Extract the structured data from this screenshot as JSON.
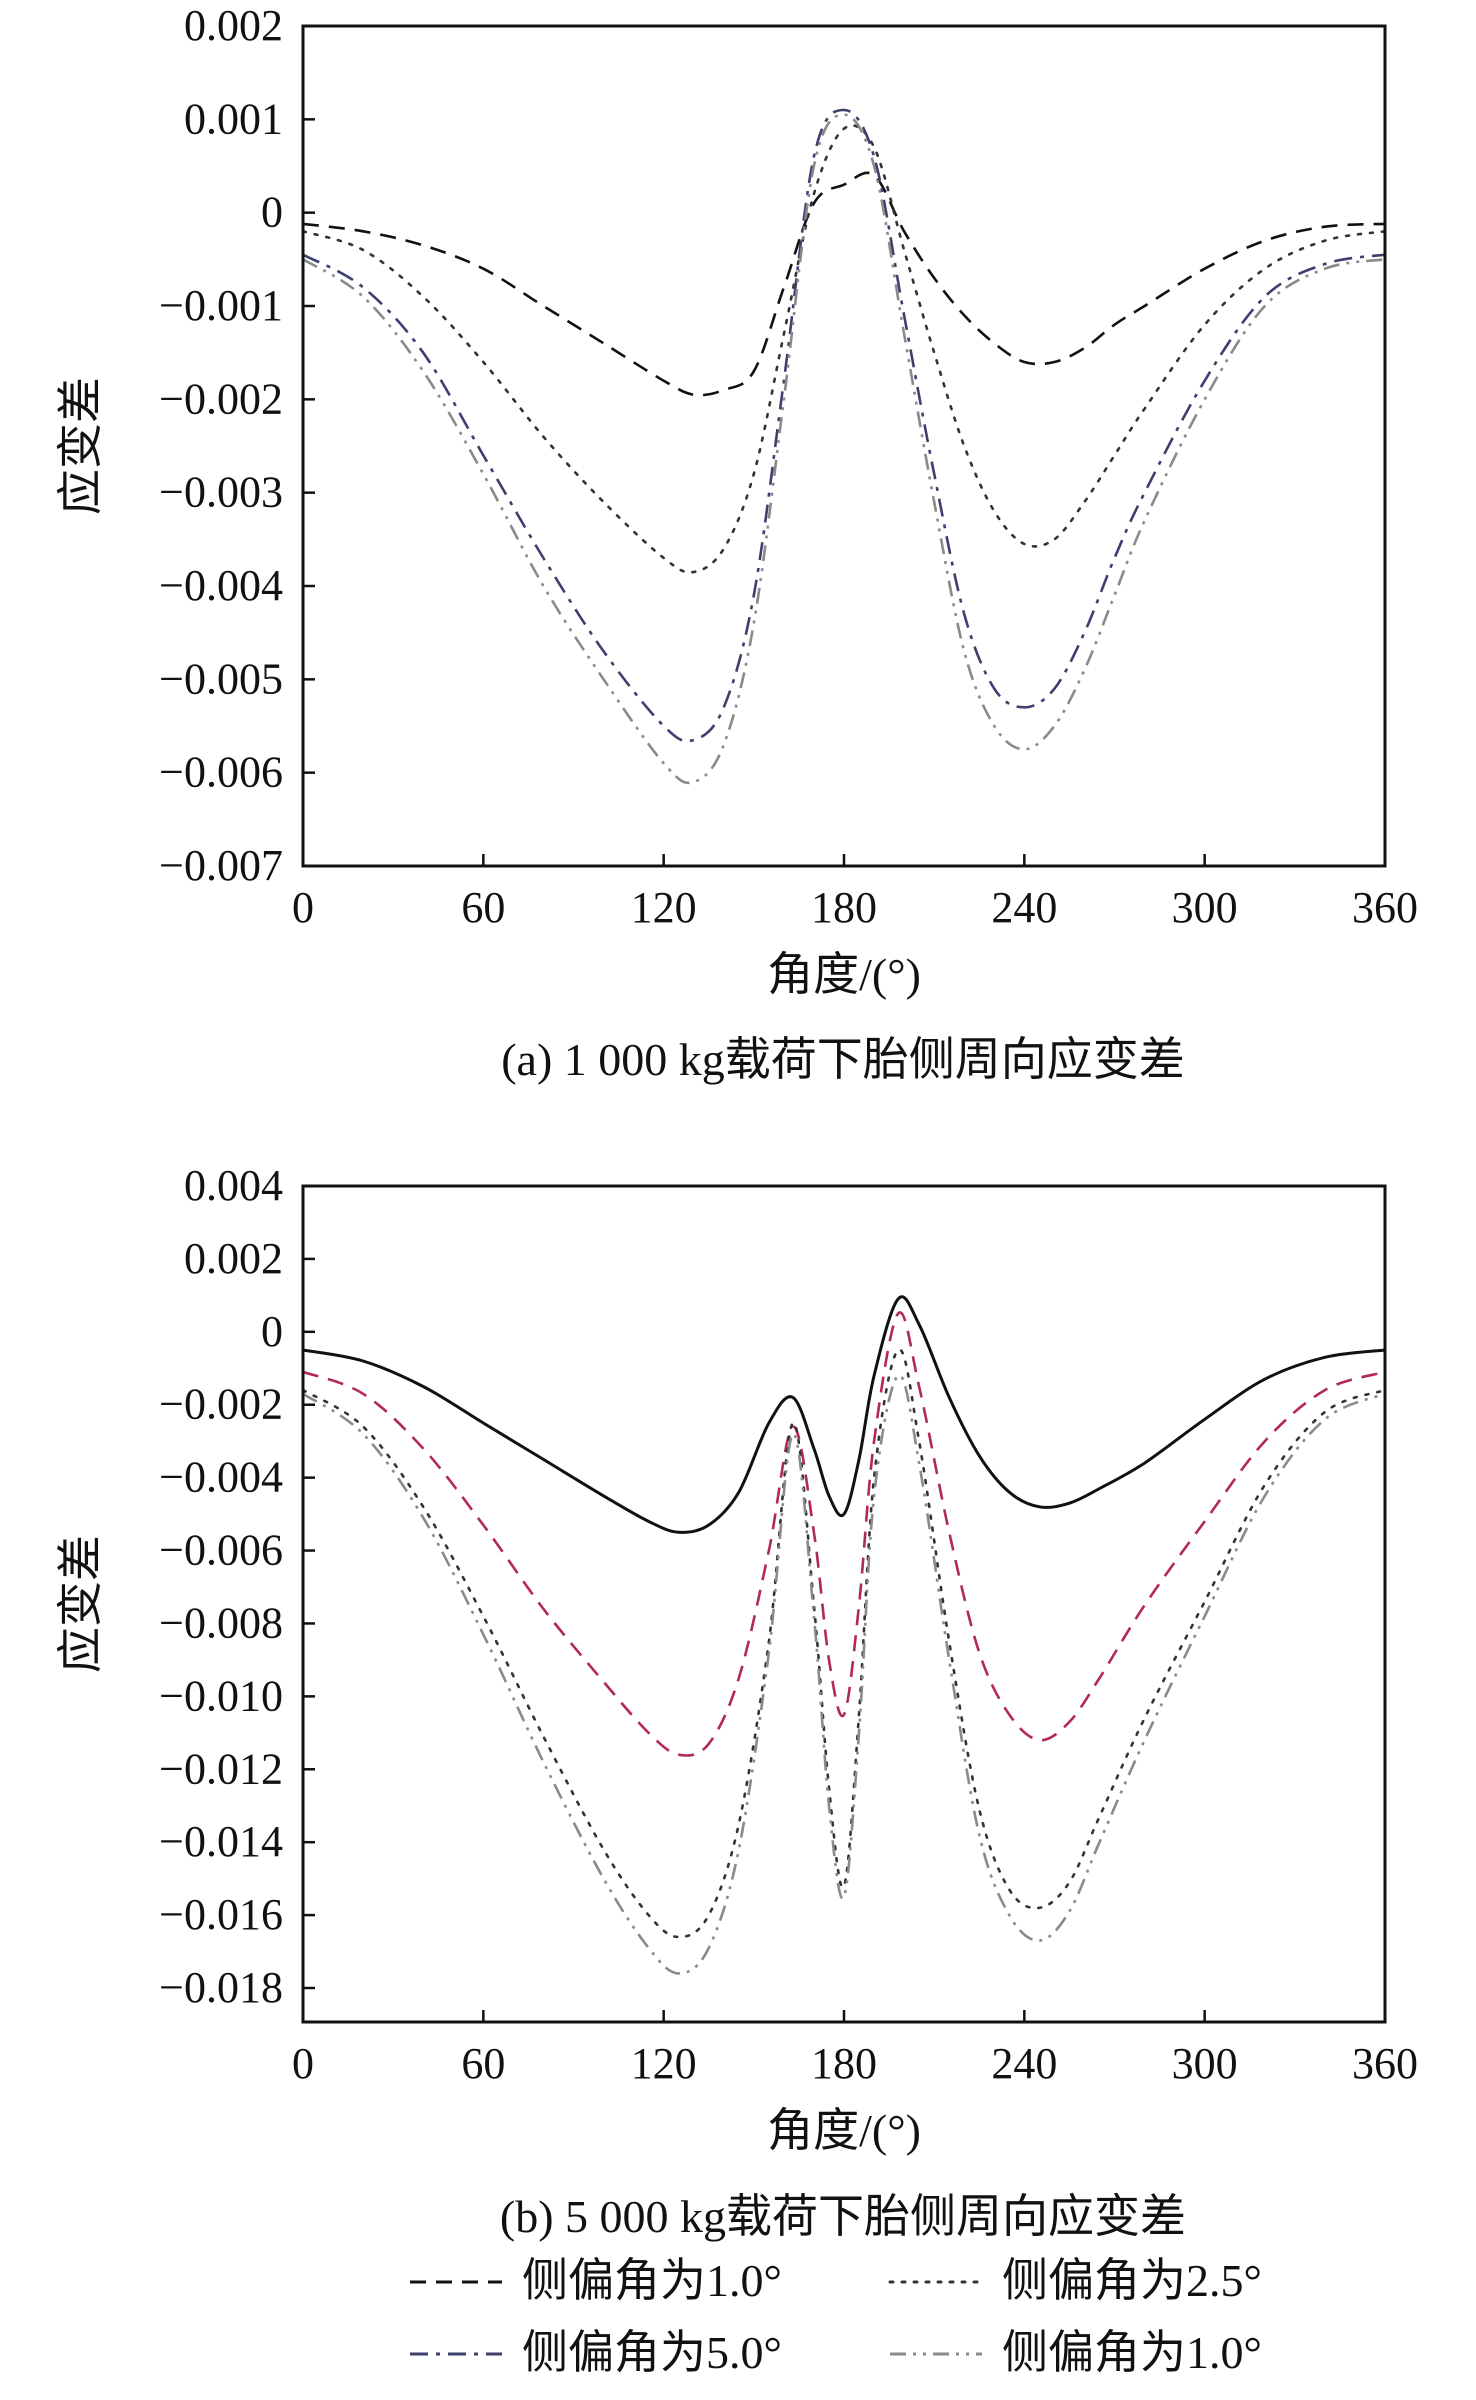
{
  "chart_data": [
    {
      "type": "line",
      "title": "(a) 1 000 kg载荷下胎侧周向应变差",
      "xlabel": "角度/(°)",
      "ylabel": "应变差",
      "xlim": [
        0,
        360
      ],
      "ylim": [
        -0.007,
        0.002
      ],
      "x_ticks": [
        "0",
        "60",
        "120",
        "180",
        "240",
        "300",
        "360"
      ],
      "y_ticks": [
        "0.002",
        "0.001",
        "0",
        "−0.001",
        "−0.002",
        "−0.003",
        "−0.004",
        "−0.005",
        "−0.006",
        "−0.007"
      ],
      "grid": false,
      "x": [
        0,
        20,
        40,
        60,
        80,
        100,
        120,
        130,
        140,
        150,
        160,
        170,
        180,
        190,
        200,
        210,
        220,
        230,
        240,
        250,
        260,
        270,
        280,
        300,
        320,
        340,
        360
      ],
      "series": [
        {
          "name": "侧偏角为1.0°",
          "color": "#111111",
          "dash": "dash",
          "values": [
            -0.00012,
            -0.0002,
            -0.00035,
            -0.0006,
            -0.001,
            -0.0014,
            -0.0018,
            -0.00195,
            -0.0019,
            -0.0017,
            -0.0008,
            0.0001,
            0.0003,
            0.0004,
            -0.0002,
            -0.0007,
            -0.0011,
            -0.0014,
            -0.0016,
            -0.0016,
            -0.00145,
            -0.0012,
            -0.001,
            -0.0006,
            -0.0003,
            -0.00015,
            -0.00012
          ]
        },
        {
          "name": "侧偏角为2.5°",
          "color": "#333333",
          "dash": "dot",
          "values": [
            -0.0002,
            -0.0004,
            -0.0009,
            -0.0016,
            -0.0024,
            -0.0031,
            -0.0037,
            -0.00385,
            -0.0036,
            -0.0028,
            -0.0013,
            0.0002,
            0.0009,
            0.0007,
            -0.0004,
            -0.0015,
            -0.0025,
            -0.0032,
            -0.00355,
            -0.0035,
            -0.0031,
            -0.0026,
            -0.0021,
            -0.0012,
            -0.0006,
            -0.0003,
            -0.0002
          ]
        },
        {
          "name": "侧偏角为5.0°",
          "color": "#3d3f6e",
          "dash": "dashdot",
          "values": [
            -0.00045,
            -0.0008,
            -0.0015,
            -0.0026,
            -0.0037,
            -0.0047,
            -0.0055,
            -0.00565,
            -0.0053,
            -0.0041,
            -0.0018,
            0.0006,
            0.0011,
            0.0006,
            -0.0011,
            -0.0028,
            -0.0043,
            -0.0051,
            -0.0053,
            -0.0051,
            -0.0045,
            -0.0037,
            -0.003,
            -0.0018,
            -0.0009,
            -0.00055,
            -0.00045
          ]
        },
        {
          "name": "侧偏角为1.0°",
          "color": "#8a8a8a",
          "dash": "dashdotdot",
          "values": [
            -0.0005,
            -0.0009,
            -0.0017,
            -0.0028,
            -0.004,
            -0.005,
            -0.0059,
            -0.0061,
            -0.0057,
            -0.0044,
            -0.002,
            0.0005,
            0.00105,
            0.0005,
            -0.0013,
            -0.0031,
            -0.0047,
            -0.0055,
            -0.00575,
            -0.0055,
            -0.0049,
            -0.0041,
            -0.0033,
            -0.002,
            -0.001,
            -0.0006,
            -0.0005
          ]
        }
      ]
    },
    {
      "type": "line",
      "title": "(b) 5 000 kg载荷下胎侧周向应变差",
      "xlabel": "角度/(°)",
      "ylabel": "应变差",
      "xlim": [
        0,
        360
      ],
      "ylim": [
        -0.0185,
        0.004
      ],
      "x_ticks": [
        "0",
        "60",
        "120",
        "180",
        "240",
        "300",
        "360"
      ],
      "y_ticks": [
        "0.004",
        "0.002",
        "0",
        "−0.002",
        "−0.004",
        "−0.006",
        "−0.008",
        "−0.010",
        "−0.012",
        "−0.014",
        "−0.016",
        "−0.018"
      ],
      "grid": false,
      "x": [
        0,
        20,
        40,
        60,
        80,
        100,
        115,
        125,
        135,
        145,
        155,
        163,
        170,
        175,
        180,
        185,
        190,
        198,
        205,
        215,
        225,
        235,
        245,
        255,
        265,
        280,
        300,
        320,
        340,
        360
      ],
      "series": [
        {
          "name": "侧偏角为1.0°",
          "color": "#111111",
          "dash": "solid",
          "values": [
            -0.0005,
            -0.0008,
            -0.0015,
            -0.0025,
            -0.0035,
            -0.0045,
            -0.0052,
            -0.0055,
            -0.0053,
            -0.0044,
            -0.0025,
            -0.0018,
            -0.0032,
            -0.0045,
            -0.005,
            -0.0035,
            -0.0012,
            0.0009,
            0.0002,
            -0.0018,
            -0.0034,
            -0.0044,
            -0.0048,
            -0.0047,
            -0.0043,
            -0.0036,
            -0.0024,
            -0.0013,
            -0.0007,
            -0.0005
          ]
        },
        {
          "name": "侧偏角为2.5°",
          "color": "#b3285a",
          "dash": "dash",
          "values": [
            -0.0011,
            -0.0017,
            -0.0032,
            -0.0053,
            -0.0076,
            -0.0096,
            -0.011,
            -0.0116,
            -0.0113,
            -0.0095,
            -0.006,
            -0.0026,
            -0.0055,
            -0.009,
            -0.0105,
            -0.0075,
            -0.003,
            0.0005,
            -0.0015,
            -0.0055,
            -0.0088,
            -0.0105,
            -0.0112,
            -0.0107,
            -0.0095,
            -0.0075,
            -0.0052,
            -0.003,
            -0.0016,
            -0.0011
          ]
        },
        {
          "name": "侧偏角为5.0°",
          "color": "#333333",
          "dash": "dot",
          "values": [
            -0.0016,
            -0.0026,
            -0.0048,
            -0.0078,
            -0.0111,
            -0.0142,
            -0.016,
            -0.0166,
            -0.016,
            -0.0135,
            -0.0085,
            -0.0025,
            -0.0075,
            -0.0125,
            -0.0152,
            -0.0105,
            -0.004,
            -0.0005,
            -0.003,
            -0.0085,
            -0.0131,
            -0.0153,
            -0.0158,
            -0.0151,
            -0.0133,
            -0.0106,
            -0.0074,
            -0.0042,
            -0.0022,
            -0.0016
          ]
        },
        {
          "name": "侧偏角为1.0°",
          "color": "#8a8a8a",
          "dash": "dashdotdot",
          "values": [
            -0.0017,
            -0.0028,
            -0.0051,
            -0.0083,
            -0.0118,
            -0.015,
            -0.0169,
            -0.0176,
            -0.0169,
            -0.0142,
            -0.0088,
            -0.0028,
            -0.0078,
            -0.013,
            -0.0155,
            -0.011,
            -0.0045,
            -0.0012,
            -0.0036,
            -0.009,
            -0.0138,
            -0.016,
            -0.0167,
            -0.0159,
            -0.014,
            -0.0112,
            -0.0078,
            -0.0045,
            -0.0024,
            -0.0017
          ]
        }
      ]
    }
  ],
  "legend": [
    {
      "label": "侧偏角为1.0°",
      "color": "#111111",
      "dash": "dash"
    },
    {
      "label": "侧偏角为2.5°",
      "color": "#333333",
      "dash": "dot"
    },
    {
      "label": "侧偏角为5.0°",
      "color": "#3d3f6e",
      "dash": "dashdot"
    },
    {
      "label": "侧偏角为1.0°",
      "color": "#8a8a8a",
      "dash": "dashdotdot"
    }
  ]
}
